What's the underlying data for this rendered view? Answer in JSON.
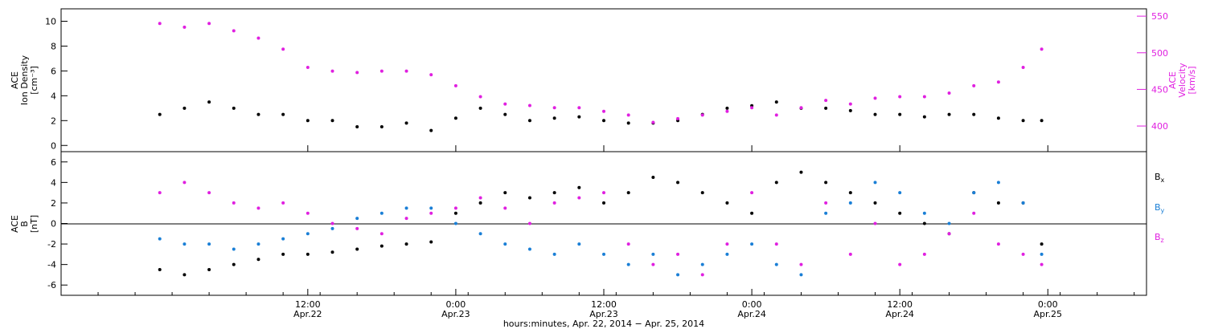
{
  "chart_data": [
    {
      "type": "scatter",
      "panel": "top",
      "ylabel_left": [
        "ACE",
        "Ion Density",
        "[cm⁻³]"
      ],
      "ylabel_right": [
        "ACE",
        "Velocity",
        "[km/s]"
      ],
      "ylim_left": [
        -0.5,
        11
      ],
      "ylim_right": [
        365,
        560
      ],
      "yticks_left": [
        0,
        2,
        4,
        6,
        8,
        10
      ],
      "yticks_right": [
        400,
        450,
        500,
        550
      ],
      "colors": {
        "density": "#000000",
        "velocity": "#e020e0"
      },
      "series": [
        {
          "name": "",
          "axis": "left",
          "color": "#000000",
          "x": [
            0,
            2,
            4,
            6,
            8,
            10,
            12,
            14,
            16,
            18,
            20,
            22,
            24,
            26,
            28,
            30,
            32,
            34,
            36,
            38,
            40,
            42,
            44,
            46,
            48,
            50,
            52,
            54,
            56,
            58,
            60,
            62,
            64,
            66,
            68,
            70,
            71.5
          ],
          "y": [
            2.5,
            3,
            3.5,
            3,
            2.5,
            2.5,
            2,
            2,
            1.5,
            1.5,
            1.8,
            1.2,
            2.2,
            3,
            2.5,
            2,
            2.2,
            2.3,
            2,
            1.8,
            1.8,
            2,
            2.5,
            3,
            3.2,
            3.5,
            3,
            3,
            2.8,
            2.5,
            2.5,
            2.3,
            2.5,
            2.5,
            2.2,
            2,
            2
          ]
        },
        {
          "name": "",
          "axis": "right",
          "color": "#e020e0",
          "x": [
            0,
            2,
            4,
            6,
            8,
            10,
            12,
            14,
            16,
            18,
            20,
            22,
            24,
            26,
            28,
            30,
            32,
            34,
            36,
            38,
            40,
            42,
            44,
            46,
            48,
            50,
            52,
            54,
            56,
            58,
            60,
            62,
            64,
            66,
            68,
            70,
            71.5
          ],
          "y": [
            540,
            535,
            540,
            530,
            520,
            505,
            480,
            475,
            473,
            475,
            475,
            470,
            455,
            440,
            430,
            428,
            425,
            425,
            420,
            415,
            405,
            410,
            415,
            420,
            425,
            415,
            425,
            435,
            430,
            438,
            440,
            440,
            445,
            455,
            460,
            480,
            505
          ]
        }
      ]
    },
    {
      "type": "scatter",
      "panel": "bottom",
      "ylabel_left": [
        "ACE",
        "B",
        "[nT]"
      ],
      "ylim": [
        -7,
        7
      ],
      "yticks": [
        -6,
        -4,
        -2,
        0,
        2,
        4,
        6
      ],
      "legend_position": "right",
      "legend": [
        {
          "label": "B",
          "sub": "x",
          "color": "#000000"
        },
        {
          "label": "B",
          "sub": "y",
          "color": "#1a7fd6"
        },
        {
          "label": "B",
          "sub": "z",
          "color": "#e020e0"
        }
      ],
      "series": [
        {
          "name": "Bx",
          "color": "#000000",
          "x": [
            0,
            2,
            4,
            6,
            8,
            10,
            12,
            14,
            16,
            18,
            20,
            22,
            24,
            26,
            28,
            30,
            32,
            34,
            36,
            38,
            40,
            42,
            44,
            46,
            48,
            50,
            52,
            54,
            56,
            58,
            60,
            62,
            64,
            66,
            68,
            70,
            71.5
          ],
          "y": [
            -4.5,
            -5,
            -4.5,
            -4,
            -3.5,
            -3,
            -3,
            -2.8,
            -2.5,
            -2.2,
            -2,
            -1.8,
            1,
            2,
            3,
            2.5,
            3,
            3.5,
            2,
            3,
            4.5,
            4,
            3,
            2,
            1,
            4,
            5,
            4,
            3,
            2,
            1,
            0,
            -1,
            3,
            2,
            2,
            -2
          ]
        },
        {
          "name": "By",
          "color": "#1a7fd6",
          "x": [
            0,
            2,
            4,
            6,
            8,
            10,
            12,
            14,
            16,
            18,
            20,
            22,
            24,
            26,
            28,
            30,
            32,
            34,
            36,
            38,
            40,
            42,
            44,
            46,
            48,
            50,
            52,
            54,
            56,
            58,
            60,
            62,
            64,
            66,
            68,
            70,
            71.5
          ],
          "y": [
            -1.5,
            -2,
            -2,
            -2.5,
            -2,
            -1.5,
            -1,
            -0.5,
            0.5,
            1,
            1.5,
            1.5,
            0,
            -1,
            -2,
            -2.5,
            -3,
            -2,
            -3,
            -4,
            -3,
            -5,
            -4,
            -3,
            -2,
            -4,
            -5,
            1,
            2,
            4,
            3,
            1,
            0,
            3,
            4,
            2,
            -3
          ]
        },
        {
          "name": "Bz",
          "color": "#e020e0",
          "x": [
            0,
            2,
            4,
            6,
            8,
            10,
            12,
            14,
            16,
            18,
            20,
            22,
            24,
            26,
            28,
            30,
            32,
            34,
            36,
            38,
            40,
            42,
            44,
            46,
            48,
            50,
            52,
            54,
            56,
            58,
            60,
            62,
            64,
            66,
            68,
            70,
            71.5
          ],
          "y": [
            3,
            4,
            3,
            2,
            1.5,
            2,
            1,
            0,
            -0.5,
            -1,
            0.5,
            1,
            1.5,
            2.5,
            1.5,
            0,
            2,
            2.5,
            3,
            -2,
            -4,
            -3,
            -5,
            -2,
            3,
            -2,
            -4,
            2,
            -3,
            0,
            -4,
            -3,
            -1,
            1,
            -2,
            -3,
            -4
          ]
        }
      ]
    }
  ],
  "x_axis": {
    "unit": "hours",
    "range": [
      -8,
      80
    ],
    "ticks": [
      {
        "hours": 12,
        "line1": "12:00",
        "line2": "Apr.22"
      },
      {
        "hours": 24,
        "line1": "0:00",
        "line2": "Apr.23"
      },
      {
        "hours": 36,
        "line1": "12:00",
        "line2": "Apr.23"
      },
      {
        "hours": 48,
        "line1": "0:00",
        "line2": "Apr.24"
      },
      {
        "hours": 60,
        "line1": "12:00",
        "line2": "Apr.24"
      },
      {
        "hours": 72,
        "line1": "0:00",
        "line2": "Apr.25"
      }
    ],
    "label": "hours:minutes, Apr. 22, 2014 − Apr. 25, 2014"
  }
}
